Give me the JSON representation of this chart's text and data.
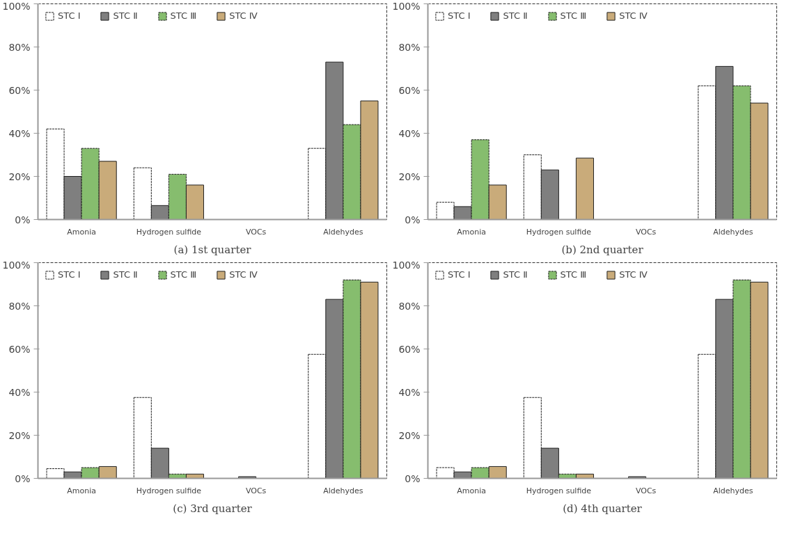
{
  "chart_data": [
    {
      "type": "bar",
      "title": "(a) 1st quarter",
      "categories": [
        "Amonia",
        "Hydrogen sulfide",
        "VOCs",
        "Aldehydes"
      ],
      "ylim": [
        0,
        100
      ],
      "yticks": [
        {
          "value": 0,
          "label": "0%"
        },
        {
          "value": 20,
          "label": "20%"
        },
        {
          "value": 40,
          "label": "40%"
        },
        {
          "value": 60,
          "label": "60%"
        },
        {
          "value": 80,
          "label": "80%"
        },
        {
          "value": 100,
          "label": "100%"
        }
      ],
      "grid": false,
      "legend": "top left",
      "series": [
        {
          "name": "STC Ⅰ",
          "color": "#ffffff",
          "values": [
            42,
            24,
            null,
            33
          ]
        },
        {
          "name": "STC Ⅱ",
          "color": "#7f7f7f",
          "values": [
            20,
            6.5,
            null,
            73
          ]
        },
        {
          "name": "STC Ⅲ",
          "color": "#86bd6e",
          "values": [
            33,
            21,
            null,
            44
          ]
        },
        {
          "name": "STC Ⅳ",
          "color": "#c9ab7a",
          "values": [
            27,
            16,
            null,
            55
          ]
        }
      ]
    },
    {
      "type": "bar",
      "title": "(b) 2nd quarter",
      "categories": [
        "Amonia",
        "Hydrogen sulfide",
        "VOCs",
        "Aldehydes"
      ],
      "ylim": [
        0,
        100
      ],
      "yticks": [
        {
          "value": 0,
          "label": "0%"
        },
        {
          "value": 20,
          "label": "20%"
        },
        {
          "value": 40,
          "label": "40%"
        },
        {
          "value": 60,
          "label": "60%"
        },
        {
          "value": 80,
          "label": "80%"
        },
        {
          "value": 100,
          "label": "100%"
        }
      ],
      "grid": false,
      "legend": "top left",
      "series": [
        {
          "name": "STC Ⅰ",
          "color": "#ffffff",
          "values": [
            8,
            30,
            null,
            62
          ]
        },
        {
          "name": "STC Ⅱ",
          "color": "#7f7f7f",
          "values": [
            6,
            23,
            null,
            71
          ]
        },
        {
          "name": "STC Ⅲ",
          "color": "#86bd6e",
          "values": [
            37,
            null,
            null,
            62
          ]
        },
        {
          "name": "STC Ⅳ",
          "color": "#c9ab7a",
          "values": [
            16,
            28.5,
            null,
            54
          ]
        }
      ]
    },
    {
      "type": "bar",
      "title": "(c) 3rd quarter",
      "categories": [
        "Amonia",
        "Hydrogen sulfide",
        "VOCs",
        "Aldehydes"
      ],
      "ylim": [
        0,
        100
      ],
      "yticks": [
        {
          "value": 0,
          "label": "0%"
        },
        {
          "value": 20,
          "label": "20%"
        },
        {
          "value": 40,
          "label": "40%"
        },
        {
          "value": 60,
          "label": "60%"
        },
        {
          "value": 80,
          "label": "80%"
        },
        {
          "value": 100,
          "label": "100%"
        }
      ],
      "grid": false,
      "legend": "top left",
      "series": [
        {
          "name": "STC Ⅰ",
          "color": "#ffffff",
          "values": [
            4.5,
            37.5,
            null,
            57.5
          ]
        },
        {
          "name": "STC Ⅱ",
          "color": "#7f7f7f",
          "values": [
            3,
            14,
            0.8,
            83
          ]
        },
        {
          "name": "STC Ⅲ",
          "color": "#86bd6e",
          "values": [
            5,
            2,
            null,
            92
          ]
        },
        {
          "name": "STC Ⅳ",
          "color": "#c9ab7a",
          "values": [
            5.5,
            2,
            null,
            91
          ]
        }
      ]
    },
    {
      "type": "bar",
      "title": "(d) 4th quarter",
      "categories": [
        "Amonia",
        "Hydrogen sulfide",
        "VOCs",
        "Aldehydes"
      ],
      "ylim": [
        0,
        100
      ],
      "yticks": [
        {
          "value": 0,
          "label": "0%"
        },
        {
          "value": 20,
          "label": "20%"
        },
        {
          "value": 40,
          "label": "40%"
        },
        {
          "value": 60,
          "label": "60%"
        },
        {
          "value": 80,
          "label": "80%"
        },
        {
          "value": 100,
          "label": "100%"
        }
      ],
      "grid": false,
      "legend": "top left",
      "series": [
        {
          "name": "STC Ⅰ",
          "color": "#ffffff",
          "values": [
            5,
            37.5,
            null,
            57.5
          ]
        },
        {
          "name": "STC Ⅱ",
          "color": "#7f7f7f",
          "values": [
            3,
            14,
            0.8,
            83
          ]
        },
        {
          "name": "STC Ⅲ",
          "color": "#86bd6e",
          "values": [
            5,
            2,
            null,
            92
          ]
        },
        {
          "name": "STC Ⅳ",
          "color": "#c9ab7a",
          "values": [
            5.5,
            2,
            null,
            91
          ]
        }
      ]
    }
  ]
}
